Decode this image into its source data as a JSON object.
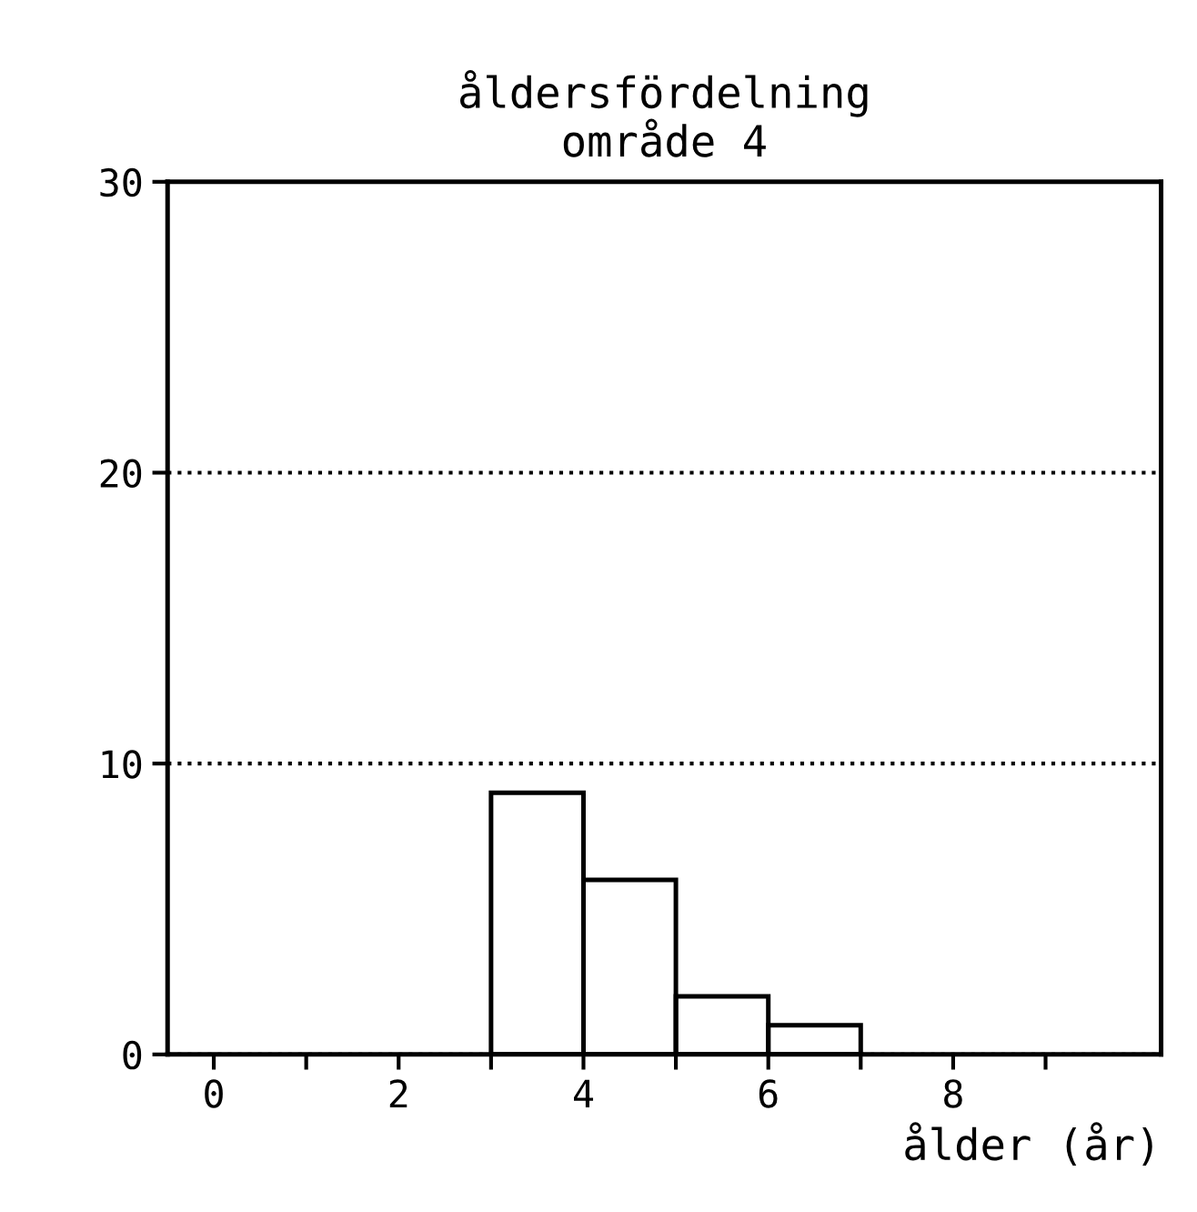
{
  "chart_data": {
    "type": "histogram",
    "title": "åldersfördelning\nområde 4",
    "xlabel": "ålder (år)",
    "bins": [
      3,
      4,
      5,
      6,
      7
    ],
    "values": [
      9,
      6,
      2,
      1
    ],
    "color": "#000000",
    "xlim": [
      -0.5,
      10.25
    ],
    "xticks": [
      0,
      {
        "value": 1,
        "label": null
      },
      2,
      {
        "value": 3,
        "label": null
      },
      4,
      {
        "value": 5,
        "label": null
      },
      6,
      {
        "value": 7,
        "label": null
      },
      8,
      {
        "value": 9,
        "label": null
      }
    ],
    "ylim": [
      0,
      30
    ],
    "yticks": [
      0,
      10,
      20,
      30
    ],
    "grid": "y",
    "line_style": "dotted"
  }
}
